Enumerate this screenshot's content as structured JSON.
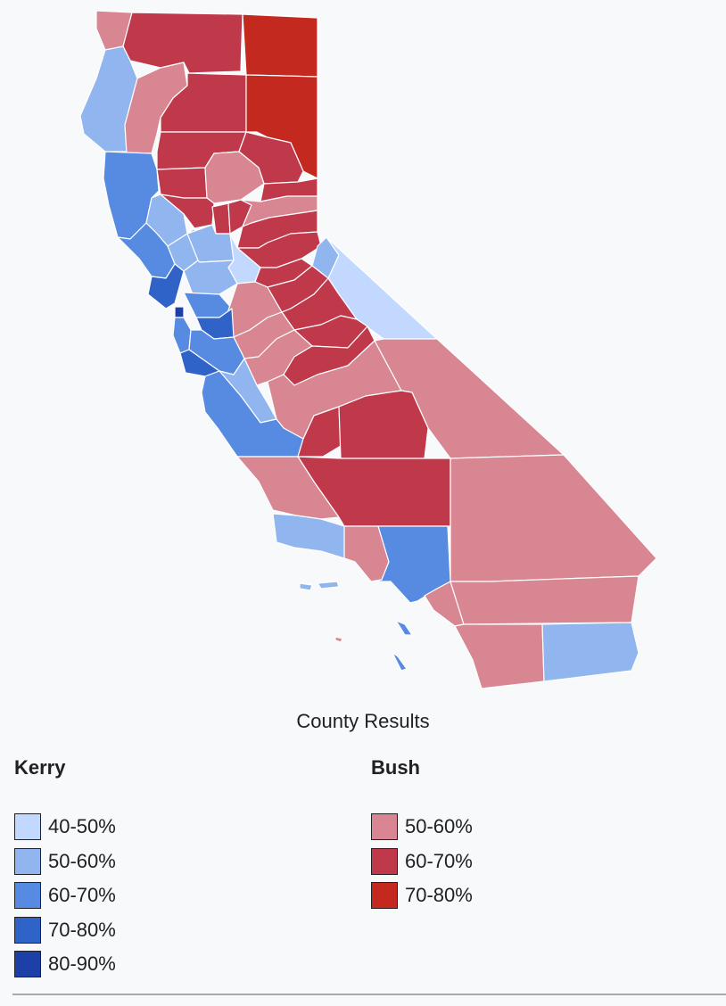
{
  "caption": "County Results",
  "legend": {
    "kerry": {
      "title": "Kerry",
      "items": [
        {
          "label": "40-50%",
          "color": "#c3d8ff"
        },
        {
          "label": "50-60%",
          "color": "#91b5ee"
        },
        {
          "label": "60-70%",
          "color": "#578ae1"
        },
        {
          "label": "70-80%",
          "color": "#2f63c7"
        },
        {
          "label": "80-90%",
          "color": "#1c3fa8"
        }
      ]
    },
    "bush": {
      "title": "Bush",
      "items": [
        {
          "label": "50-60%",
          "color": "#d78692"
        },
        {
          "label": "60-70%",
          "color": "#c0394b"
        },
        {
          "label": "70-80%",
          "color": "#c4291f"
        }
      ]
    }
  }
}
